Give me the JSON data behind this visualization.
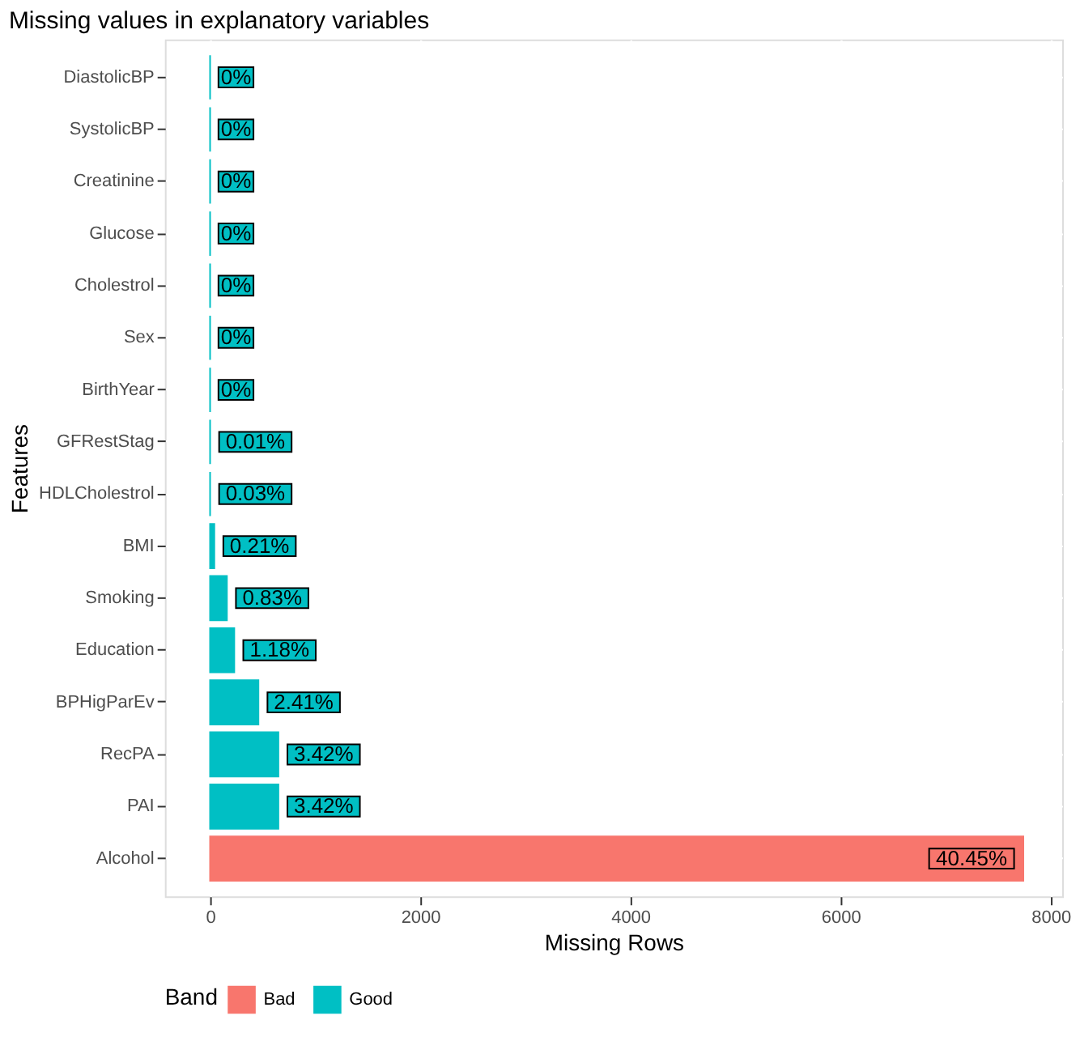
{
  "chart_data": {
    "type": "bar",
    "orientation": "horizontal",
    "title": "Missing values in explanatory variables",
    "xlabel": "Missing Rows",
    "ylabel": "Features",
    "legend_title": "Band",
    "categories": [
      "DiastolicBP",
      "SystolicBP",
      "Creatinine",
      "Glucose",
      "Cholestrol",
      "Sex",
      "BirthYear",
      "GFRestStag",
      "HDLCholestrol",
      "BMI",
      "Smoking",
      "Education",
      "BPHigParEv",
      "RecPA",
      "PAI",
      "Alcohol"
    ],
    "series": [
      {
        "name": "Bad",
        "color": "#f8766d",
        "values": [
          null,
          null,
          null,
          null,
          null,
          null,
          null,
          null,
          null,
          null,
          null,
          null,
          null,
          null,
          null,
          7740
        ]
      },
      {
        "name": "Good",
        "color": "#00bfc4",
        "values": [
          0,
          0,
          0,
          0,
          0,
          0,
          0,
          0,
          0,
          40,
          160,
          230,
          460,
          650,
          650,
          null
        ]
      }
    ],
    "value_labels": [
      "0%",
      "0%",
      "0%",
      "0%",
      "0%",
      "0%",
      "0%",
      "0.01%",
      "0.03%",
      "0.21%",
      "0.83%",
      "1.18%",
      "2.41%",
      "3.42%",
      "3.42%",
      "40.45%"
    ],
    "xlim": [
      -430,
      8110
    ],
    "xticks": [
      0,
      2000,
      4000,
      6000,
      8000
    ],
    "grid": true,
    "legend": "bottom"
  }
}
